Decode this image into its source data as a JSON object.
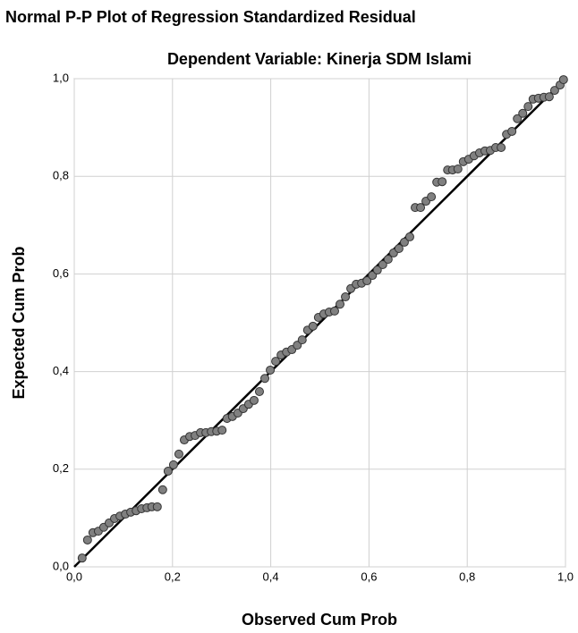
{
  "chart_data": {
    "type": "scatter",
    "title": "Normal P-P Plot of Regression Standardized Residual",
    "subtitle": "Dependent Variable: Kinerja SDM Islami",
    "xlabel": "Observed Cum Prob",
    "ylabel": "Expected Cum Prob",
    "xlim": [
      0,
      1
    ],
    "ylim": [
      0,
      1
    ],
    "xticks": [
      {
        "value": 0,
        "label": "0,0"
      },
      {
        "value": 0.2,
        "label": "0,2"
      },
      {
        "value": 0.4,
        "label": "0,4"
      },
      {
        "value": 0.6,
        "label": "0,6"
      },
      {
        "value": 0.8,
        "label": "0,8"
      },
      {
        "value": 1,
        "label": "1,0"
      }
    ],
    "yticks": [
      {
        "value": 0,
        "label": "0,0"
      },
      {
        "value": 0.2,
        "label": "0,2"
      },
      {
        "value": 0.4,
        "label": "0,4"
      },
      {
        "value": 0.6,
        "label": "0,6"
      },
      {
        "value": 0.8,
        "label": "0,8"
      },
      {
        "value": 1,
        "label": "1,0"
      }
    ],
    "grid": true,
    "color": "#808080",
    "x": [
      0.016,
      0.027,
      0.038,
      0.049,
      0.06,
      0.071,
      0.082,
      0.093,
      0.104,
      0.115,
      0.126,
      0.137,
      0.148,
      0.158,
      0.169,
      0.18,
      0.191,
      0.202,
      0.213,
      0.224,
      0.235,
      0.246,
      0.257,
      0.268,
      0.279,
      0.29,
      0.301,
      0.311,
      0.322,
      0.333,
      0.344,
      0.355,
      0.366,
      0.377,
      0.388,
      0.399,
      0.41,
      0.421,
      0.432,
      0.443,
      0.454,
      0.464,
      0.475,
      0.486,
      0.497,
      0.508,
      0.519,
      0.53,
      0.541,
      0.552,
      0.563,
      0.574,
      0.585,
      0.596,
      0.607,
      0.617,
      0.628,
      0.639,
      0.65,
      0.661,
      0.672,
      0.683,
      0.694,
      0.705,
      0.716,
      0.727,
      0.738,
      0.749,
      0.76,
      0.77,
      0.781,
      0.792,
      0.803,
      0.814,
      0.825,
      0.836,
      0.847,
      0.858,
      0.869,
      0.88,
      0.891,
      0.902,
      0.913,
      0.924,
      0.934,
      0.945,
      0.956,
      0.967,
      0.978,
      0.989,
      0.996
    ],
    "y": [
      0.018,
      0.055,
      0.07,
      0.073,
      0.081,
      0.09,
      0.099,
      0.104,
      0.108,
      0.112,
      0.115,
      0.119,
      0.121,
      0.123,
      0.123,
      0.158,
      0.196,
      0.209,
      0.231,
      0.26,
      0.267,
      0.269,
      0.275,
      0.275,
      0.277,
      0.278,
      0.28,
      0.304,
      0.308,
      0.315,
      0.324,
      0.333,
      0.341,
      0.359,
      0.386,
      0.403,
      0.421,
      0.434,
      0.44,
      0.445,
      0.454,
      0.465,
      0.485,
      0.493,
      0.511,
      0.518,
      0.522,
      0.524,
      0.538,
      0.553,
      0.57,
      0.579,
      0.581,
      0.586,
      0.597,
      0.608,
      0.619,
      0.63,
      0.643,
      0.652,
      0.665,
      0.676,
      0.736,
      0.736,
      0.749,
      0.758,
      0.788,
      0.789,
      0.813,
      0.813,
      0.815,
      0.83,
      0.835,
      0.842,
      0.848,
      0.852,
      0.853,
      0.859,
      0.859,
      0.886,
      0.892,
      0.918,
      0.929,
      0.943,
      0.958,
      0.96,
      0.962,
      0.963,
      0.976,
      0.987,
      0.998
    ]
  }
}
